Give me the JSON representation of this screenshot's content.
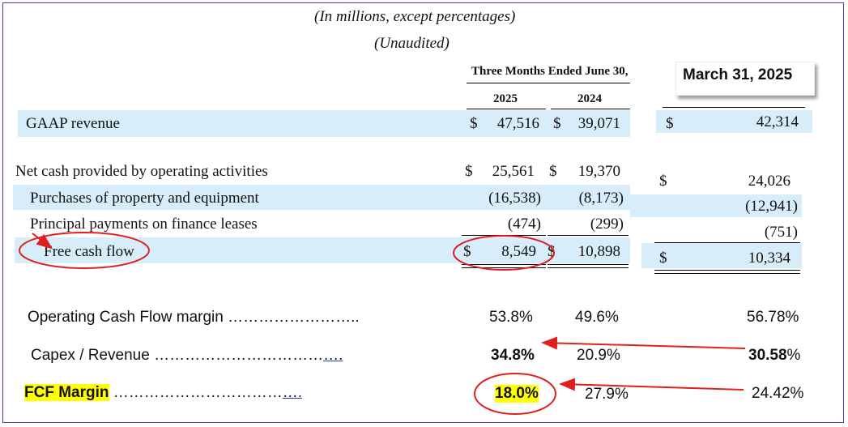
{
  "header": {
    "units": "(In millions, except percentages)",
    "unaudited": "(Unaudited)",
    "period": "Three Months Ended June 30,",
    "year_2025": "2025",
    "year_2024": "2024",
    "march_label": "March 31, 2025"
  },
  "rows": {
    "gaap_revenue": {
      "label": "GAAP revenue",
      "cur": "$",
      "v2025": "47,516",
      "cur2": "$",
      "v2024": "39,071",
      "mcur": "$",
      "vmar": "42,314"
    },
    "net_cash": {
      "label": "Net cash provided by operating activities",
      "cur": "$",
      "v2025": "25,561",
      "cur2": "$",
      "v2024": "19,370",
      "mcur": "$",
      "vmar": "24,026"
    },
    "purchases": {
      "label": "Purchases of property and equipment",
      "v2025": "(16,538)",
      "v2024": "(8,173)",
      "vmar": "(12,941)"
    },
    "principal": {
      "label": "Principal payments on finance leases",
      "v2025": "(474)",
      "v2024": "(299)",
      "vmar": "(751)"
    },
    "fcf": {
      "label": "Free cash flow",
      "cur": "$",
      "v2025": "8,549",
      "cur2": "$",
      "v2024": "10,898",
      "mcur": "$",
      "vmar": "10,334"
    }
  },
  "metrics": {
    "ocf": {
      "label": "Operating Cash Flow margin",
      "dots": "……………………..",
      "v2025": "53.8%",
      "v2024": "49.6%",
      "vmar": "56.78%"
    },
    "capex": {
      "label": "Capex / Revenue",
      "dots": "……………………………",
      "dots_u": "….",
      "v2025": "34.8%",
      "v2024": "20.9%",
      "vmar_bold": "30.58",
      "vmar_pct": "%"
    },
    "fcf_margin": {
      "label": "FCF Margin",
      "dots": "……………………………",
      "dots_u": "….",
      "v2025": "18.0%",
      "v2024": "27.9%",
      "vmar": "24.42%"
    }
  },
  "colors": {
    "band": "#d7eefa",
    "annotation": "#e02020",
    "highlight": "#ffff00",
    "border": "#3b3fc4"
  }
}
